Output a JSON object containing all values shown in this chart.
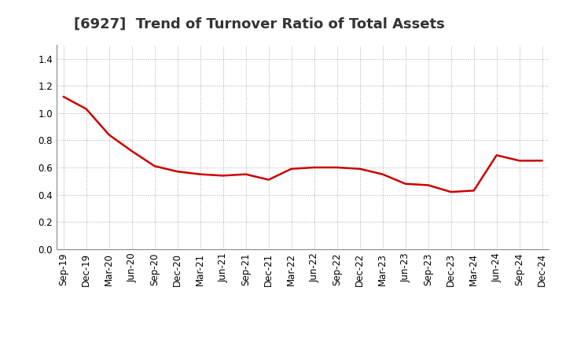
{
  "title": "[6927]  Trend of Turnover Ratio of Total Assets",
  "x_labels": [
    "Sep-19",
    "Dec-19",
    "Mar-20",
    "Jun-20",
    "Sep-20",
    "Dec-20",
    "Mar-21",
    "Jun-21",
    "Sep-21",
    "Dec-21",
    "Mar-22",
    "Jun-22",
    "Sep-22",
    "Dec-22",
    "Mar-23",
    "Jun-23",
    "Sep-23",
    "Dec-23",
    "Mar-24",
    "Jun-24",
    "Sep-24",
    "Dec-24"
  ],
  "y_values": [
    1.12,
    1.03,
    0.84,
    0.72,
    0.61,
    0.57,
    0.55,
    0.54,
    0.55,
    0.51,
    0.59,
    0.6,
    0.6,
    0.59,
    0.55,
    0.48,
    0.47,
    0.42,
    0.43,
    0.69,
    0.65,
    0.65
  ],
  "line_color": "#cc0000",
  "line_width": 1.8,
  "ylim": [
    0.0,
    1.5
  ],
  "yticks": [
    0.0,
    0.2,
    0.4,
    0.6,
    0.8,
    1.0,
    1.2,
    1.4
  ],
  "grid_color": "#aaaaaa",
  "background_color": "#ffffff",
  "title_fontsize": 13,
  "tick_fontsize": 8.5,
  "title_color": "#333333"
}
